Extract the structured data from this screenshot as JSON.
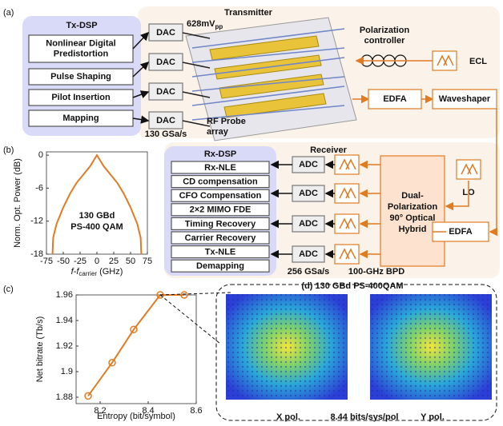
{
  "panel_a": {
    "label": "(a)",
    "tx_dsp": {
      "title": "Tx-DSP",
      "blocks": [
        [
          "Nonlinear Digital",
          "Predistortion"
        ],
        [
          "Pulse Shaping"
        ],
        [
          "Pilot Insertion"
        ],
        [
          "Mapping"
        ]
      ]
    },
    "dacs": [
      "DAC",
      "DAC",
      "DAC",
      "DAC"
    ],
    "transmitter": "Transmitter",
    "swing": {
      "text": "628mV",
      "subscript": "pp"
    },
    "sample_rate": "130 GSa/s",
    "rf_probe": [
      "RF Probe",
      "array"
    ],
    "pol_controller": [
      "Polarization",
      "controller"
    ],
    "ecl": "ECL",
    "edfa": "EDFA",
    "waveshaper": "Waveshaper"
  },
  "panel_b": {
    "label": "(b)",
    "rx_dsp": {
      "title": "Rx-DSP",
      "blocks": [
        "Rx-NLE",
        "CD compensation",
        "CFO Compensation",
        "2×2 MIMO FDE",
        "Timing Recovery",
        "Carrier Recovery",
        "Tx-NLE",
        "Demapping"
      ]
    },
    "receiver": "Receiver",
    "adcs": [
      "ADC",
      "ADC",
      "ADC",
      "ADC"
    ],
    "adc_rate": "256 GSa/s",
    "bpd": "100-GHz BPD",
    "hybrid": [
      "Dual-",
      "Polarization",
      "90° Optical",
      "Hybrid"
    ],
    "lo": "LO",
    "edfa": "EDFA"
  },
  "panel_c": {
    "label": "(c)",
    "constellation_title": "(d) 130 GBd PS-400QAM",
    "x_pol": "X pol.",
    "entropy_note": "8.44 bits/sys/pol",
    "y_pol": "Y pol."
  },
  "chart_data": [
    {
      "type": "line",
      "ylabel": "Norm. Opt. Power (dB)",
      "xlabel": {
        "text": "f-f",
        "subscript": "carrier",
        "suffix": "(GHz)"
      },
      "annotations": [
        "130 GBd",
        "PS-400 QAM"
      ],
      "x": [
        -66,
        -65,
        -60,
        -50,
        -40,
        -30,
        -20,
        -10,
        -5,
        0,
        5,
        10,
        20,
        30,
        40,
        50,
        60,
        65,
        66
      ],
      "values": [
        -18,
        -15,
        -12.5,
        -9.5,
        -7,
        -5,
        -3.5,
        -2,
        -1,
        0,
        -1,
        -2,
        -3.5,
        -5,
        -7,
        -9.5,
        -12.5,
        -15,
        -18
      ],
      "color": "#e07b22",
      "xlim": [
        -75,
        75
      ],
      "xticks": [
        -75,
        -50,
        -25,
        0,
        25,
        50,
        75
      ],
      "ylim": [
        -18,
        0.6
      ],
      "yticks": [
        0,
        -6,
        -12,
        -18
      ]
    },
    {
      "type": "line",
      "xlabel": "Entropy (bit/symbol)",
      "ylabel": "Net bitrate (Tb/s)",
      "x": [
        8.15,
        8.25,
        8.34,
        8.45,
        8.55
      ],
      "values": [
        1.881,
        1.907,
        1.933,
        1.96,
        1.96
      ],
      "color": "#e07b22",
      "markers": true,
      "xlim": [
        8.1,
        8.6
      ],
      "xticks": [
        8.2,
        8.4,
        8.6
      ],
      "ylim": [
        1.875,
        1.96
      ],
      "yticks": [
        1.88,
        1.9,
        1.92,
        1.94,
        1.96
      ]
    }
  ]
}
